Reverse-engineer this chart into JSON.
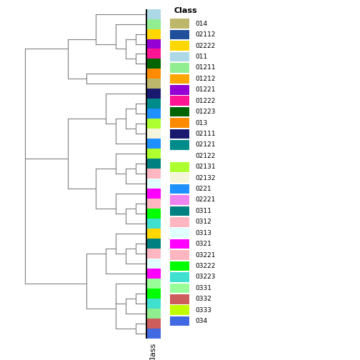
{
  "legend_title": "Class",
  "xlabel": "Class",
  "classes": [
    {
      "label": "014",
      "color": "#BDB76B"
    },
    {
      "label": "02112",
      "color": "#1F4E9A"
    },
    {
      "label": "02222",
      "color": "#FFD700"
    },
    {
      "label": "011",
      "color": "#ADD8E6"
    },
    {
      "label": "01211",
      "color": "#90EE90"
    },
    {
      "label": "01212",
      "color": "#FFA500"
    },
    {
      "label": "01221",
      "color": "#9400D3"
    },
    {
      "label": "01222",
      "color": "#FF1493"
    },
    {
      "label": "01223",
      "color": "#006400"
    },
    {
      "label": "013",
      "color": "#FF8C00"
    },
    {
      "label": "02111",
      "color": "#191970"
    },
    {
      "label": "02121",
      "color": "#008B8B"
    },
    {
      "label": "02122",
      "color": "#FFFFFF"
    },
    {
      "label": "02131",
      "color": "#ADFF2F"
    },
    {
      "label": "02132",
      "color": "#F5F5DC"
    },
    {
      "label": "0221",
      "color": "#1E90FF"
    },
    {
      "label": "02221",
      "color": "#EE82EE"
    },
    {
      "label": "0311",
      "color": "#008080"
    },
    {
      "label": "0312",
      "color": "#FFB6C1"
    },
    {
      "label": "0313",
      "color": "#E0FFFF"
    },
    {
      "label": "0321",
      "color": "#FF00FF"
    },
    {
      "label": "03221",
      "color": "#FFB6C1"
    },
    {
      "label": "03222",
      "color": "#00FF00"
    },
    {
      "label": "03223",
      "color": "#40E0D0"
    },
    {
      "label": "0331",
      "color": "#98FF98"
    },
    {
      "label": "0332",
      "color": "#CD5C5C"
    },
    {
      "label": "0333",
      "color": "#BFFF00"
    },
    {
      "label": "034",
      "color": "#4169E1"
    }
  ],
  "bar_colors_top_to_bottom": [
    "#ADD8E6",
    "#90EE90",
    "#FFD700",
    "#9400D3",
    "#FF1493",
    "#006400",
    "#FF8C00",
    "#BDB76B",
    "#191970",
    "#008B8B",
    "#1E90FF",
    "#ADFF2F",
    "#F5F5DC",
    "#1E90FF",
    "#ADFF2F",
    "#008080",
    "#FFB6C1",
    "#E0FFFF",
    "#FF00FF",
    "#FFB6C1",
    "#00FF00",
    "#40E0D0",
    "#FFD700",
    "#008080",
    "#FFB6C1",
    "#E0FFFF",
    "#FF00FF",
    "#98FF98",
    "#00FF00",
    "#40E0D0",
    "#90EE90",
    "#CD5C5C",
    "#4169E1"
  ],
  "dend_color": "#808080",
  "fig_width": 5.04,
  "fig_height": 5.04,
  "dpi": 100
}
